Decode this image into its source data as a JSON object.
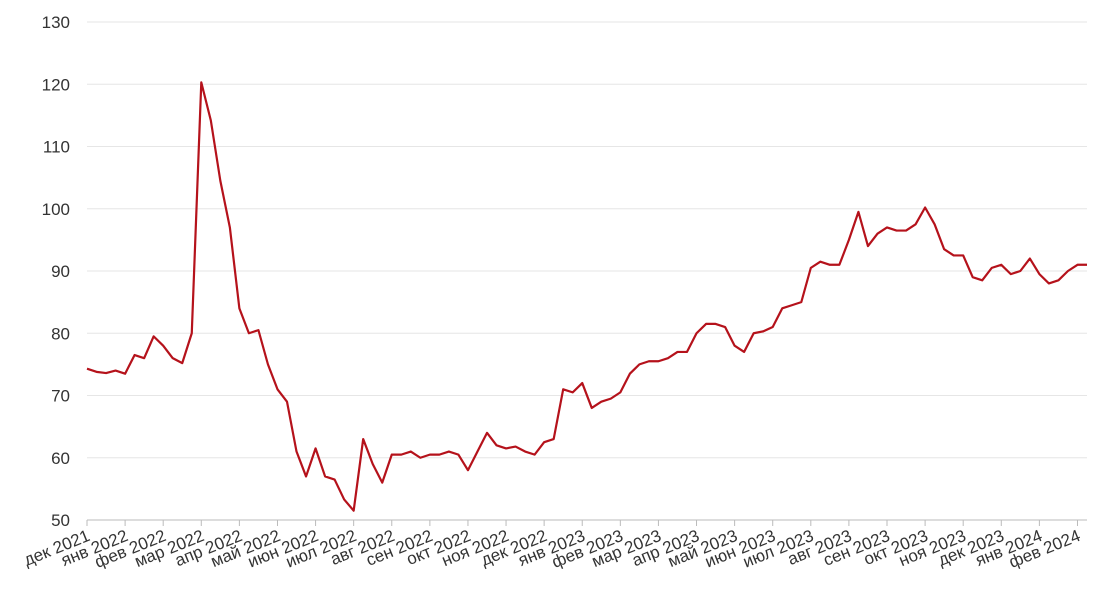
{
  "chart_data": {
    "type": "line",
    "categories": [
      "дек 2021",
      null,
      null,
      null,
      "янв 2022",
      null,
      null,
      null,
      "фев 2022",
      null,
      null,
      null,
      "мар 2022",
      null,
      null,
      null,
      "апр 2022",
      null,
      null,
      null,
      "май 2022",
      null,
      null,
      null,
      "июн 2022",
      null,
      null,
      null,
      "июл 2022",
      null,
      null,
      null,
      "авг 2022",
      null,
      null,
      null,
      "сен 2022",
      null,
      null,
      null,
      "окт 2022",
      null,
      null,
      null,
      "ноя 2022",
      null,
      null,
      null,
      "дек 2022",
      null,
      null,
      null,
      "янв 2023",
      null,
      null,
      null,
      "фев 2023",
      null,
      null,
      null,
      "мар 2023",
      null,
      null,
      null,
      "апр 2023",
      null,
      null,
      null,
      "май 2023",
      null,
      null,
      null,
      "июн 2023",
      null,
      null,
      null,
      "июл 2023",
      null,
      null,
      null,
      "авг 2023",
      null,
      null,
      null,
      "сен 2023",
      null,
      null,
      null,
      "окт 2023",
      null,
      null,
      null,
      "ноя 2023",
      null,
      null,
      null,
      "дек 2023",
      null,
      null,
      null,
      "янв 2024",
      null,
      null,
      null,
      "фев 2024",
      null
    ],
    "series": [
      {
        "color": "#b5121b",
        "values": [
          74.3,
          73.8,
          73.6,
          74.0,
          73.5,
          76.5,
          76.0,
          79.5,
          78.0,
          76.0,
          75.2,
          80.0,
          120.3,
          114.2,
          104.5,
          97.0,
          84.0,
          80.0,
          80.5,
          75.0,
          71.0,
          69.0,
          61.0,
          57.0,
          61.5,
          57.0,
          56.5,
          53.3,
          51.5,
          63.0,
          59.0,
          56.0,
          60.5,
          60.5,
          61.0,
          60.0,
          60.5,
          60.5,
          61.0,
          60.5,
          58.0,
          61.0,
          64.0,
          62.0,
          61.5,
          61.8,
          61.0,
          60.5,
          62.5,
          63.0,
          71.0,
          70.5,
          72.0,
          68.0,
          69.0,
          69.5,
          70.5,
          73.5,
          75.0,
          75.5,
          75.5,
          76.0,
          77.0,
          77.0,
          80.0,
          81.5,
          81.5,
          81.0,
          78.0,
          77.0,
          80.0,
          80.3,
          81.0,
          84.0,
          84.5,
          85.0,
          90.5,
          91.5,
          91.0,
          91.0,
          95.0,
          99.5,
          94.0,
          96.0,
          97.0,
          96.5,
          96.5,
          97.5,
          100.2,
          97.5,
          93.5,
          92.5,
          92.5,
          89.0,
          88.5,
          90.5,
          91.0,
          89.5,
          90.0,
          92.0,
          89.5,
          88.0,
          88.5,
          90.0,
          91.0,
          91.0
        ]
      }
    ],
    "ylim": [
      50,
      130
    ],
    "yticks": [
      50,
      60,
      70,
      80,
      90,
      100,
      110,
      120,
      130
    ],
    "grid": true
  }
}
